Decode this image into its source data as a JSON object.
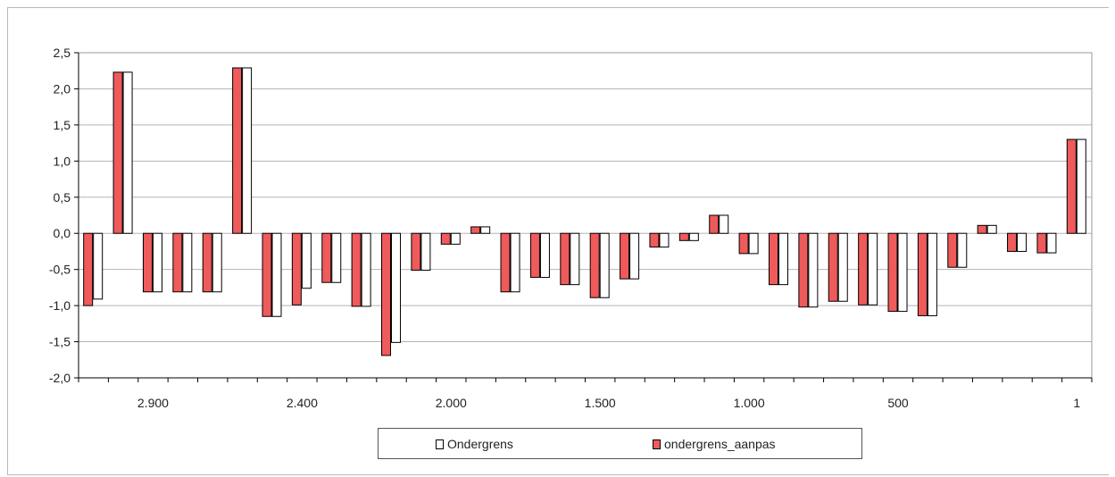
{
  "chart_data": {
    "type": "bar",
    "ylim": [
      -2.0,
      2.5
    ],
    "y_ticks": [
      "2,5",
      "2,0",
      "1,5",
      "1,0",
      "0,5",
      "0,0",
      "-0,5",
      "-1,0",
      "-1,5",
      "-2,0"
    ],
    "y_tick_values": [
      2.5,
      2.0,
      1.5,
      1.0,
      0.5,
      0.0,
      -0.5,
      -1.0,
      -1.5,
      -2.0
    ],
    "x_tick_labels": [
      "2.900",
      "2.400",
      "2.000",
      "1.500",
      "1.000",
      "500",
      "1"
    ],
    "x_tick_label_categories": [
      2,
      7,
      12,
      17,
      22,
      27,
      33
    ],
    "category_count": 34,
    "grid": true,
    "legend_position": "bottom",
    "series": [
      {
        "name": "ondergrens_aanpas",
        "color": "#ef5a5a",
        "values": [
          -1.0,
          2.23,
          -0.81,
          -0.81,
          -0.81,
          2.29,
          -1.15,
          -0.99,
          -0.68,
          -1.01,
          -1.69,
          -0.51,
          -0.15,
          0.09,
          -0.81,
          -0.61,
          -0.71,
          -0.89,
          -0.63,
          -0.19,
          -0.1,
          0.25,
          -0.28,
          -0.71,
          -1.02,
          -0.94,
          -0.99,
          -1.08,
          -1.14,
          -0.47,
          0.11,
          -0.25,
          -0.27,
          1.3
        ]
      },
      {
        "name": "Ondergrens",
        "color": "#ffffff",
        "values": [
          -0.91,
          2.23,
          -0.81,
          -0.81,
          -0.81,
          2.29,
          -1.15,
          -0.76,
          -0.68,
          -1.01,
          -1.51,
          -0.51,
          -0.15,
          0.09,
          -0.81,
          -0.61,
          -0.71,
          -0.89,
          -0.63,
          -0.19,
          -0.1,
          0.25,
          -0.28,
          -0.71,
          -1.02,
          -0.94,
          -0.99,
          -1.08,
          -1.14,
          -0.47,
          0.11,
          -0.25,
          -0.27,
          1.3
        ]
      }
    ]
  },
  "legend": {
    "items": [
      {
        "label": "Ondergrens",
        "color": "#ffffff"
      },
      {
        "label": "ondergrens_aanpas",
        "color": "#ef5a5a"
      }
    ]
  }
}
